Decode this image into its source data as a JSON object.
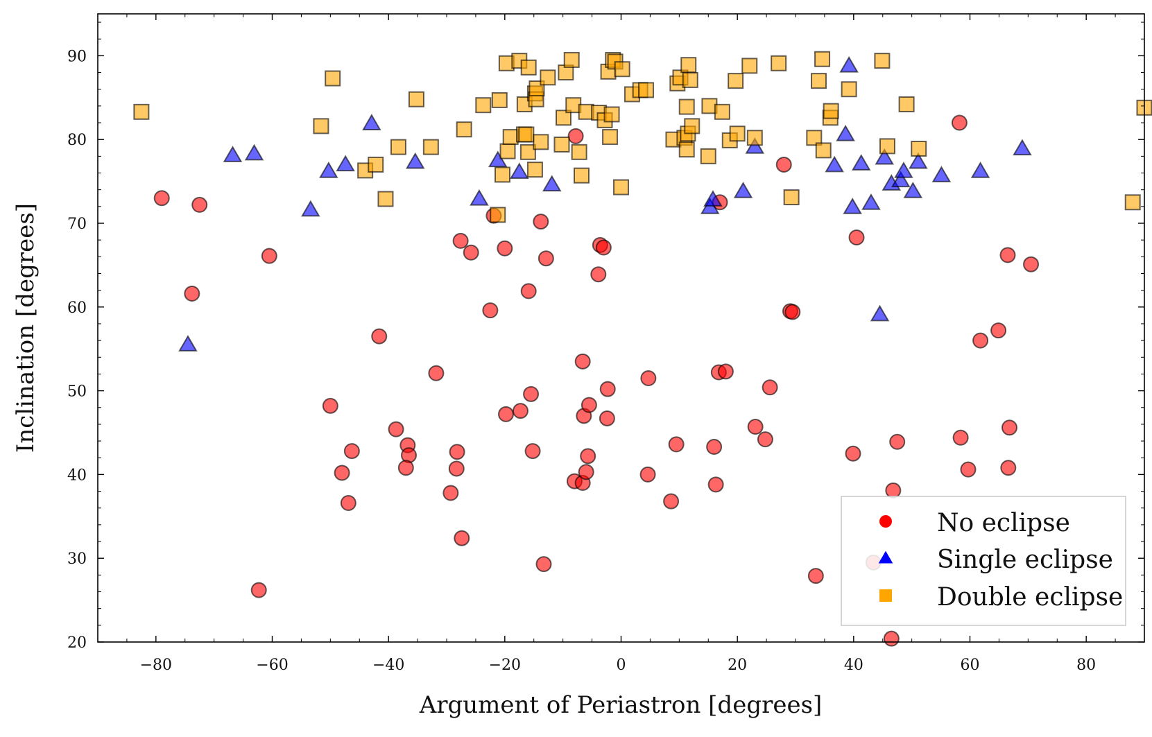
{
  "chart_data": {
    "type": "scatter",
    "title": "",
    "xlabel": "Argument of Periastron [degrees]",
    "ylabel": "Inclination [degrees]",
    "xlim": [
      -90,
      90
    ],
    "ylim": [
      20,
      95
    ],
    "xticks": [
      -80,
      -60,
      -40,
      -20,
      0,
      20,
      40,
      60,
      80
    ],
    "yticks": [
      20,
      30,
      40,
      50,
      60,
      70,
      80,
      90
    ],
    "xtick_labels": [
      "−80",
      "−60",
      "−40",
      "−20",
      "0",
      "20",
      "40",
      "60",
      "80"
    ],
    "ytick_labels": [
      "20",
      "30",
      "40",
      "50",
      "60",
      "70",
      "80",
      "90"
    ],
    "grid": false,
    "legend_position": "lower-right",
    "series": [
      {
        "name": "No eclipse",
        "marker": "circle",
        "color": "#ff0000",
        "points": [
          [
            -79,
            73
          ],
          [
            -72.5,
            72.2
          ],
          [
            -73.8,
            61.6
          ],
          [
            -60.5,
            66.1
          ],
          [
            -62.3,
            26.2
          ],
          [
            -50,
            48.2
          ],
          [
            -48,
            40.2
          ],
          [
            -46.3,
            42.8
          ],
          [
            -46.9,
            36.6
          ],
          [
            -41.6,
            56.5
          ],
          [
            -38.7,
            45.4
          ],
          [
            -36.7,
            43.5
          ],
          [
            -36.5,
            42.3
          ],
          [
            -37,
            40.8
          ],
          [
            -31.8,
            52.1
          ],
          [
            -29.3,
            37.8
          ],
          [
            -28.2,
            42.7
          ],
          [
            -28.3,
            40.7
          ],
          [
            -27.4,
            32.4
          ],
          [
            -27.6,
            67.9
          ],
          [
            -25.8,
            66.5
          ],
          [
            -22.5,
            59.6
          ],
          [
            -21.9,
            70.9
          ],
          [
            -20,
            67
          ],
          [
            -19.8,
            47.2
          ],
          [
            -17.3,
            47.6
          ],
          [
            -15.9,
            61.9
          ],
          [
            -15.5,
            49.6
          ],
          [
            -15.2,
            42.8
          ],
          [
            -13.8,
            70.2
          ],
          [
            -12.9,
            65.8
          ],
          [
            -13.3,
            29.3
          ],
          [
            -7.8,
            80.4
          ],
          [
            -8,
            39.2
          ],
          [
            -6.6,
            53.5
          ],
          [
            -6.4,
            47
          ],
          [
            -6.6,
            39
          ],
          [
            -6,
            40.3
          ],
          [
            -5.7,
            42.2
          ],
          [
            -5.5,
            48.3
          ],
          [
            -3.9,
            63.9
          ],
          [
            -3.6,
            67.4
          ],
          [
            -3.0,
            67.1
          ],
          [
            -2.3,
            50.2
          ],
          [
            -2.4,
            46.7
          ],
          [
            4.7,
            51.5
          ],
          [
            4.6,
            40
          ],
          [
            8.6,
            36.8
          ],
          [
            9.5,
            43.6
          ],
          [
            16.0,
            43.3
          ],
          [
            16.3,
            38.8
          ],
          [
            16.8,
            52.2
          ],
          [
            17,
            72.5
          ],
          [
            18,
            52.3
          ],
          [
            23.1,
            45.7
          ],
          [
            24.8,
            44.2
          ],
          [
            25.6,
            50.4
          ],
          [
            28.0,
            77
          ],
          [
            29.1,
            59.5
          ],
          [
            29.5,
            59.4
          ],
          [
            33.5,
            27.9
          ],
          [
            39.9,
            42.5
          ],
          [
            40.5,
            68.3
          ],
          [
            43.4,
            29.5
          ],
          [
            46.5,
            20.4
          ],
          [
            46.8,
            38.1
          ],
          [
            47.5,
            43.9
          ],
          [
            58.2,
            82
          ],
          [
            58.4,
            44.4
          ],
          [
            59.7,
            40.6
          ],
          [
            61.8,
            56
          ],
          [
            64.9,
            57.2
          ],
          [
            66.5,
            66.2
          ],
          [
            66.6,
            40.8
          ],
          [
            66.8,
            45.6
          ],
          [
            70.5,
            65.1
          ]
        ]
      },
      {
        "name": "Single eclipse",
        "marker": "triangle",
        "color": "#0000ff",
        "points": [
          [
            -74.5,
            55.5
          ],
          [
            -66.8,
            78.1
          ],
          [
            -63.1,
            78.3
          ],
          [
            -53.4,
            71.6
          ],
          [
            -50.3,
            76.2
          ],
          [
            -47.4,
            77
          ],
          [
            -42.9,
            81.9
          ],
          [
            -35.4,
            77.3
          ],
          [
            -24.4,
            72.9
          ],
          [
            -21.2,
            77.5
          ],
          [
            -17.5,
            76.1
          ],
          [
            -11.9,
            74.6
          ],
          [
            15.3,
            71.9
          ],
          [
            15.8,
            72.8
          ],
          [
            21,
            73.8
          ],
          [
            23,
            79.1
          ],
          [
            36.7,
            76.9
          ],
          [
            38.6,
            80.6
          ],
          [
            39.2,
            88.8
          ],
          [
            39.8,
            71.9
          ],
          [
            41.3,
            77.1
          ],
          [
            43,
            72.4
          ],
          [
            44.5,
            59.1
          ],
          [
            45.3,
            77.8
          ],
          [
            46.5,
            74.7
          ],
          [
            48.1,
            75.1
          ],
          [
            48.6,
            76.2
          ],
          [
            50.2,
            73.8
          ],
          [
            51.1,
            77.3
          ],
          [
            55.1,
            75.7
          ],
          [
            61.8,
            76.2
          ],
          [
            69,
            78.9
          ]
        ]
      },
      {
        "name": "Double eclipse",
        "marker": "square",
        "color": "#ffa500",
        "points": [
          [
            -82.5,
            83.3
          ],
          [
            -51.6,
            81.6
          ],
          [
            -49.6,
            87.3
          ],
          [
            -44,
            76.3
          ],
          [
            -42.2,
            77
          ],
          [
            -40.5,
            72.9
          ],
          [
            -38.3,
            79.1
          ],
          [
            -35.2,
            84.8
          ],
          [
            -32.7,
            79.1
          ],
          [
            -27,
            81.2
          ],
          [
            -23.7,
            84.1
          ],
          [
            -21.2,
            71
          ],
          [
            -20.9,
            84.7
          ],
          [
            -20.4,
            75.8
          ],
          [
            -19.7,
            89.1
          ],
          [
            -19.5,
            78.6
          ],
          [
            -19.0,
            80.3
          ],
          [
            -17.5,
            89.4
          ],
          [
            -16.7,
            80.6
          ],
          [
            -16.6,
            84.2
          ],
          [
            -16.3,
            80.6
          ],
          [
            -16.0,
            78.5
          ],
          [
            -15.9,
            88.6
          ],
          [
            -14.8,
            76.4
          ],
          [
            -14.8,
            85.5
          ],
          [
            -14.6,
            84.8
          ],
          [
            -14.5,
            86.1
          ],
          [
            -13.8,
            79.7
          ],
          [
            -12.6,
            87.4
          ],
          [
            -10.2,
            79.4
          ],
          [
            -9.9,
            82.6
          ],
          [
            -9.5,
            88
          ],
          [
            -8.5,
            89.5
          ],
          [
            -8.2,
            84.1
          ],
          [
            -7.2,
            78.5
          ],
          [
            -6.8,
            75.7
          ],
          [
            -6.0,
            83.3
          ],
          [
            -3.8,
            83.2
          ],
          [
            -2.8,
            82.3
          ],
          [
            -2.2,
            88.1
          ],
          [
            -1.9,
            80.3
          ],
          [
            -1.6,
            83
          ],
          [
            -1.4,
            89.5
          ],
          [
            -1.0,
            89.3
          ],
          [
            0,
            74.3
          ],
          [
            0.2,
            88.4
          ],
          [
            1.9,
            85.4
          ],
          [
            3.3,
            85.9
          ],
          [
            4.3,
            85.9
          ],
          [
            9.0,
            80
          ],
          [
            9.7,
            86.7
          ],
          [
            10.2,
            87.4
          ],
          [
            10.9,
            80.2
          ],
          [
            11.3,
            83.9
          ],
          [
            11.3,
            78.8
          ],
          [
            11.5,
            80.7
          ],
          [
            11.6,
            88.9
          ],
          [
            11.9,
            87.1
          ],
          [
            12.2,
            81.6
          ],
          [
            15.0,
            78
          ],
          [
            15.2,
            84
          ],
          [
            17.4,
            83.3
          ],
          [
            18.7,
            79.9
          ],
          [
            19.7,
            87.0
          ],
          [
            20,
            80.7
          ],
          [
            22.1,
            88.8
          ],
          [
            23.0,
            80.2
          ],
          [
            27.1,
            89.1
          ],
          [
            29.3,
            73.1
          ],
          [
            33.2,
            80.2
          ],
          [
            34.0,
            87.0
          ],
          [
            34.6,
            89.6
          ],
          [
            34.8,
            78.7
          ],
          [
            36.0,
            82.6
          ],
          [
            36.1,
            83.4
          ],
          [
            39.2,
            86.0
          ],
          [
            44.9,
            89.4
          ],
          [
            45.8,
            79.2
          ],
          [
            49.1,
            84.2
          ],
          [
            51.2,
            78.9
          ],
          [
            88.0,
            72.5
          ],
          [
            90.0,
            83.8
          ]
        ]
      }
    ]
  }
}
